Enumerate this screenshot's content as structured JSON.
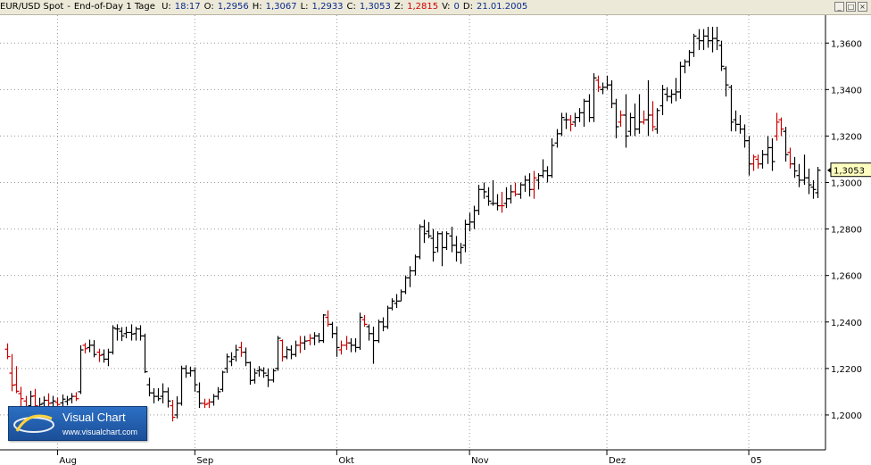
{
  "header": {
    "symbol": "EUR/USD Spot",
    "sep": "-",
    "period": "End-of-Day 1 Tage",
    "fields": [
      {
        "label": "U:",
        "value": "18:17",
        "color": "#0a2a8c"
      },
      {
        "label": "O:",
        "value": "1,2956",
        "color": "#0a2a8c"
      },
      {
        "label": "H:",
        "value": "1,3067",
        "color": "#0a2a8c"
      },
      {
        "label": "L:",
        "value": "1,2933",
        "color": "#0a2a8c"
      },
      {
        "label": "C:",
        "value": "1,3053",
        "color": "#0a2a8c"
      },
      {
        "label": "Z:",
        "value": "1,2815",
        "color": "#d00000"
      },
      {
        "label": "V:",
        "value": "0",
        "color": "#0a2a8c"
      },
      {
        "label": "D:",
        "value": "21.01.2005",
        "color": "#0a2a8c"
      }
    ]
  },
  "logo": {
    "name": "Visual Chart",
    "url": "www.visualchart.com"
  },
  "chart_data": {
    "type": "ohlc",
    "ylim": [
      1.185,
      1.372
    ],
    "y_ticks": [
      1.2,
      1.22,
      1.24,
      1.26,
      1.28,
      1.3,
      1.32,
      1.34,
      1.36
    ],
    "y_tick_labels": [
      "1,2000",
      "1,2200",
      "1,2400",
      "1,2600",
      "1,2800",
      "1,3000",
      "1,3200",
      "1,3400",
      "1,3600"
    ],
    "x_tick_labels": [
      {
        "label": "Aug",
        "index": 11
      },
      {
        "label": "Sep",
        "index": 41
      },
      {
        "label": "Okt",
        "index": 72
      },
      {
        "label": "Nov",
        "index": 101
      },
      {
        "label": "Dez",
        "index": 131
      },
      {
        "label": "05",
        "index": 162
      }
    ],
    "last_price": 1.3053,
    "last_price_label": "1,3053",
    "grid": true,
    "colors": {
      "up": "#000000",
      "down": "#cc0000",
      "grid": "#9a9a9a",
      "price_box": "#ffffc0"
    },
    "bars": [
      [
        1.2283,
        1.2308,
        1.224,
        1.2251,
        "d"
      ],
      [
        1.218,
        1.2262,
        1.2102,
        1.2128,
        "d"
      ],
      [
        1.213,
        1.221,
        1.2094,
        1.2102,
        "d"
      ],
      [
        1.2092,
        1.2121,
        1.2033,
        1.207,
        "d"
      ],
      [
        1.206,
        1.2082,
        1.2015,
        1.2032,
        "d"
      ],
      [
        1.204,
        1.2104,
        1.2013,
        1.208,
        "u"
      ],
      [
        1.2082,
        1.2112,
        1.2026,
        1.204,
        "d"
      ],
      [
        1.2034,
        1.2074,
        1.2008,
        1.2045,
        "u"
      ],
      [
        1.205,
        1.208,
        1.2016,
        1.2063,
        "u"
      ],
      [
        1.2063,
        1.2093,
        1.2032,
        1.205,
        "d"
      ],
      [
        1.2052,
        1.2082,
        1.2028,
        1.206,
        "u"
      ],
      [
        1.2054,
        1.2075,
        1.201,
        1.2045,
        "d"
      ],
      [
        1.2052,
        1.2088,
        1.2033,
        1.2068,
        "u"
      ],
      [
        1.2058,
        1.2082,
        1.2041,
        1.2065,
        "u"
      ],
      [
        1.207,
        1.2094,
        1.205,
        1.208,
        "u"
      ],
      [
        1.208,
        1.2098,
        1.206,
        1.207,
        "d"
      ],
      [
        1.21,
        1.23,
        1.209,
        1.228,
        "u"
      ],
      [
        1.23,
        1.231,
        1.2265,
        1.2285,
        "d"
      ],
      [
        1.229,
        1.2324,
        1.227,
        1.23,
        "u"
      ],
      [
        1.23,
        1.2322,
        1.2248,
        1.226,
        "u"
      ],
      [
        1.227,
        1.2285,
        1.2228,
        1.2256,
        "d"
      ],
      [
        1.226,
        1.2282,
        1.2225,
        1.224,
        "u"
      ],
      [
        1.224,
        1.2285,
        1.221,
        1.227,
        "u"
      ],
      [
        1.227,
        1.2386,
        1.226,
        1.2375,
        "u"
      ],
      [
        1.237,
        1.239,
        1.232,
        1.237,
        "u"
      ],
      [
        1.236,
        1.2378,
        1.2318,
        1.234,
        "u"
      ],
      [
        1.235,
        1.238,
        1.233,
        1.2355,
        "u"
      ],
      [
        1.2355,
        1.239,
        1.232,
        1.2348,
        "u"
      ],
      [
        1.235,
        1.238,
        1.232,
        1.237,
        "u"
      ],
      [
        1.237,
        1.2386,
        1.232,
        1.234,
        "u"
      ],
      [
        1.234,
        1.235,
        1.218,
        1.2186,
        "u"
      ],
      [
        1.213,
        1.216,
        1.208,
        1.2095,
        "u"
      ],
      [
        1.2095,
        1.2115,
        1.205,
        1.208,
        "u"
      ],
      [
        1.208,
        1.2115,
        1.206,
        1.207,
        "u"
      ],
      [
        1.208,
        1.2136,
        1.205,
        1.21,
        "u"
      ],
      [
        1.21,
        1.2118,
        1.2032,
        1.206,
        "u"
      ],
      [
        1.204,
        1.2065,
        1.1972,
        1.199,
        "d"
      ],
      [
        1.2,
        1.208,
        1.1985,
        1.205,
        "u"
      ],
      [
        1.205,
        1.2212,
        1.204,
        1.22,
        "u"
      ],
      [
        1.22,
        1.2214,
        1.216,
        1.218,
        "u"
      ],
      [
        1.218,
        1.2208,
        1.2165,
        1.219,
        "u"
      ],
      [
        1.219,
        1.2205,
        1.21,
        1.213,
        "u"
      ],
      [
        1.21,
        1.214,
        1.203,
        1.205,
        "u"
      ],
      [
        1.205,
        1.207,
        1.203,
        1.2045,
        "d"
      ],
      [
        1.205,
        1.207,
        1.203,
        1.2056,
        "d"
      ],
      [
        1.2056,
        1.209,
        1.204,
        1.208,
        "u"
      ],
      [
        1.208,
        1.212,
        1.2066,
        1.21,
        "u"
      ],
      [
        1.211,
        1.219,
        1.21,
        1.2184,
        "u"
      ],
      [
        1.22,
        1.2264,
        1.218,
        1.225,
        "u"
      ],
      [
        1.223,
        1.227,
        1.221,
        1.224,
        "u"
      ],
      [
        1.225,
        1.2302,
        1.223,
        1.228,
        "u"
      ],
      [
        1.229,
        1.2315,
        1.225,
        1.227,
        "d"
      ],
      [
        1.227,
        1.229,
        1.221,
        1.2225,
        "u"
      ],
      [
        1.2225,
        1.223,
        1.213,
        1.2148,
        "u"
      ],
      [
        1.215,
        1.22,
        1.2135,
        1.218,
        "u"
      ],
      [
        1.219,
        1.221,
        1.2165,
        1.2195,
        "u"
      ],
      [
        1.219,
        1.2205,
        1.216,
        1.218,
        "u"
      ],
      [
        1.217,
        1.22,
        1.212,
        1.215,
        "u"
      ],
      [
        1.215,
        1.22,
        1.214,
        1.219,
        "u"
      ],
      [
        1.22,
        1.234,
        1.219,
        1.233,
        "u"
      ],
      [
        1.232,
        1.2325,
        1.223,
        1.225,
        "d"
      ],
      [
        1.225,
        1.2295,
        1.224,
        1.2282,
        "u"
      ],
      [
        1.228,
        1.23,
        1.224,
        1.226,
        "u"
      ],
      [
        1.226,
        1.232,
        1.225,
        1.23,
        "u"
      ],
      [
        1.23,
        1.234,
        1.2266,
        1.231,
        "d"
      ],
      [
        1.231,
        1.234,
        1.228,
        1.2318,
        "u"
      ],
      [
        1.232,
        1.2348,
        1.23,
        1.233,
        "d"
      ],
      [
        1.233,
        1.2356,
        1.23,
        1.234,
        "u"
      ],
      [
        1.234,
        1.2353,
        1.231,
        1.232,
        "u"
      ],
      [
        1.232,
        1.2434,
        1.231,
        1.243,
        "u"
      ],
      [
        1.242,
        1.245,
        1.238,
        1.239,
        "d"
      ],
      [
        1.239,
        1.24,
        1.233,
        1.235,
        "u"
      ],
      [
        1.235,
        1.238,
        1.225,
        1.229,
        "u"
      ],
      [
        1.228,
        1.232,
        1.226,
        1.23,
        "d"
      ],
      [
        1.23,
        1.234,
        1.228,
        1.231,
        "d"
      ],
      [
        1.231,
        1.233,
        1.227,
        1.23,
        "u"
      ],
      [
        1.23,
        1.233,
        1.227,
        1.229,
        "u"
      ],
      [
        1.229,
        1.244,
        1.228,
        1.242,
        "u"
      ],
      [
        1.241,
        1.243,
        1.238,
        1.239,
        "d"
      ],
      [
        1.238,
        1.239,
        1.232,
        1.235,
        "u"
      ],
      [
        1.235,
        1.238,
        1.222,
        1.232,
        "u"
      ],
      [
        1.232,
        1.241,
        1.231,
        1.24,
        "u"
      ],
      [
        1.24,
        1.242,
        1.236,
        1.238,
        "u"
      ],
      [
        1.238,
        1.247,
        1.237,
        1.246,
        "u"
      ],
      [
        1.246,
        1.2502,
        1.245,
        1.249,
        "u"
      ],
      [
        1.248,
        1.252,
        1.246,
        1.249,
        "u"
      ],
      [
        1.249,
        1.254,
        1.249,
        1.253,
        "u"
      ],
      [
        1.253,
        1.26,
        1.252,
        1.259,
        "u"
      ],
      [
        1.259,
        1.264,
        1.255,
        1.262,
        "u"
      ],
      [
        1.262,
        1.269,
        1.26,
        1.268,
        "u"
      ],
      [
        1.268,
        1.282,
        1.267,
        1.281,
        "u"
      ],
      [
        1.281,
        1.284,
        1.274,
        1.278,
        "u"
      ],
      [
        1.279,
        1.283,
        1.276,
        1.277,
        "u"
      ],
      [
        1.276,
        1.28,
        1.266,
        1.27,
        "u"
      ],
      [
        1.272,
        1.279,
        1.27,
        1.278,
        "u"
      ],
      [
        1.278,
        1.279,
        1.264,
        1.272,
        "u"
      ],
      [
        1.272,
        1.279,
        1.271,
        1.278,
        "u"
      ],
      [
        1.277,
        1.281,
        1.27,
        1.273,
        "u"
      ],
      [
        1.273,
        1.277,
        1.266,
        1.27,
        "u"
      ],
      [
        1.27,
        1.274,
        1.265,
        1.272,
        "u"
      ],
      [
        1.273,
        1.284,
        1.27,
        1.282,
        "u"
      ],
      [
        1.282,
        1.287,
        1.279,
        1.283,
        "u"
      ],
      [
        1.283,
        1.29,
        1.28,
        1.288,
        "u"
      ],
      [
        1.288,
        1.299,
        1.286,
        1.297,
        "u"
      ],
      [
        1.297,
        1.3,
        1.293,
        1.296,
        "u"
      ],
      [
        1.294,
        1.298,
        1.29,
        1.292,
        "u"
      ],
      [
        1.291,
        1.301,
        1.29,
        1.291,
        "u"
      ],
      [
        1.291,
        1.295,
        1.288,
        1.29,
        "u"
      ],
      [
        1.29,
        1.296,
        1.287,
        1.29,
        "d"
      ],
      [
        1.291,
        1.298,
        1.289,
        1.293,
        "u"
      ],
      [
        1.293,
        1.299,
        1.291,
        1.296,
        "u"
      ],
      [
        1.296,
        1.3,
        1.294,
        1.295,
        "d"
      ],
      [
        1.295,
        1.3,
        1.293,
        1.299,
        "u"
      ],
      [
        1.299,
        1.303,
        1.296,
        1.301,
        "u"
      ],
      [
        1.301,
        1.304,
        1.294,
        1.297,
        "u"
      ],
      [
        1.297,
        1.305,
        1.293,
        1.302,
        "d"
      ],
      [
        1.301,
        1.304,
        1.297,
        1.303,
        "u"
      ],
      [
        1.303,
        1.31,
        1.302,
        1.305,
        "u"
      ],
      [
        1.305,
        1.307,
        1.3,
        1.303,
        "u"
      ],
      [
        1.303,
        1.319,
        1.302,
        1.316,
        "u"
      ],
      [
        1.317,
        1.323,
        1.315,
        1.321,
        "u"
      ],
      [
        1.321,
        1.33,
        1.32,
        1.328,
        "u"
      ],
      [
        1.327,
        1.33,
        1.323,
        1.327,
        "u"
      ],
      [
        1.327,
        1.329,
        1.322,
        1.325,
        "d"
      ],
      [
        1.326,
        1.33,
        1.324,
        1.328,
        "u"
      ],
      [
        1.328,
        1.332,
        1.326,
        1.33,
        "u"
      ],
      [
        1.33,
        1.336,
        1.324,
        1.335,
        "u"
      ],
      [
        1.335,
        1.338,
        1.326,
        1.328,
        "u"
      ],
      [
        1.328,
        1.347,
        1.326,
        1.345,
        "u"
      ],
      [
        1.344,
        1.346,
        1.339,
        1.341,
        "d"
      ],
      [
        1.34,
        1.343,
        1.338,
        1.341,
        "u"
      ],
      [
        1.341,
        1.346,
        1.34,
        1.342,
        "u"
      ],
      [
        1.342,
        1.344,
        1.332,
        1.334,
        "u"
      ],
      [
        1.334,
        1.336,
        1.319,
        1.324,
        "u"
      ],
      [
        1.326,
        1.331,
        1.324,
        1.329,
        "d"
      ],
      [
        1.329,
        1.338,
        1.315,
        1.32,
        "u"
      ],
      [
        1.322,
        1.33,
        1.32,
        1.328,
        "u"
      ],
      [
        1.328,
        1.334,
        1.32,
        1.323,
        "u"
      ],
      [
        1.323,
        1.338,
        1.321,
        1.326,
        "u"
      ],
      [
        1.326,
        1.331,
        1.325,
        1.327,
        "d"
      ],
      [
        1.327,
        1.344,
        1.32,
        1.329,
        "u"
      ],
      [
        1.329,
        1.335,
        1.322,
        1.324,
        "d"
      ],
      [
        1.323,
        1.332,
        1.321,
        1.331,
        "u"
      ],
      [
        1.333,
        1.342,
        1.329,
        1.34,
        "u"
      ],
      [
        1.338,
        1.341,
        1.335,
        1.337,
        "u"
      ],
      [
        1.337,
        1.34,
        1.334,
        1.338,
        "u"
      ],
      [
        1.338,
        1.345,
        1.335,
        1.339,
        "u"
      ],
      [
        1.339,
        1.352,
        1.336,
        1.35,
        "u"
      ],
      [
        1.35,
        1.353,
        1.347,
        1.352,
        "u"
      ],
      [
        1.352,
        1.357,
        1.35,
        1.356,
        "u"
      ],
      [
        1.356,
        1.364,
        1.354,
        1.363,
        "u"
      ],
      [
        1.362,
        1.366,
        1.357,
        1.361,
        "u"
      ],
      [
        1.361,
        1.366,
        1.357,
        1.363,
        "u"
      ],
      [
        1.363,
        1.367,
        1.358,
        1.361,
        "u"
      ],
      [
        1.361,
        1.367,
        1.356,
        1.362,
        "u"
      ],
      [
        1.362,
        1.367,
        1.357,
        1.361,
        "u"
      ],
      [
        1.359,
        1.361,
        1.348,
        1.35,
        "u"
      ],
      [
        1.349,
        1.35,
        1.337,
        1.342,
        "u"
      ],
      [
        1.341,
        1.342,
        1.322,
        1.326,
        "u"
      ],
      [
        1.327,
        1.331,
        1.322,
        1.325,
        "u"
      ],
      [
        1.325,
        1.329,
        1.321,
        1.323,
        "u"
      ],
      [
        1.323,
        1.325,
        1.315,
        1.318,
        "u"
      ],
      [
        1.318,
        1.32,
        1.303,
        1.308,
        "u"
      ],
      [
        1.308,
        1.312,
        1.305,
        1.311,
        "d"
      ],
      [
        1.31,
        1.312,
        1.306,
        1.308,
        "d"
      ],
      [
        1.308,
        1.314,
        1.306,
        1.312,
        "u"
      ],
      [
        1.312,
        1.32,
        1.308,
        1.315,
        "u"
      ],
      [
        1.315,
        1.319,
        1.305,
        1.309,
        "u"
      ],
      [
        1.32,
        1.33,
        1.318,
        1.326,
        "d"
      ],
      [
        1.327,
        1.328,
        1.32,
        1.323,
        "d"
      ],
      [
        1.322,
        1.324,
        1.309,
        1.312,
        "u"
      ],
      [
        1.313,
        1.315,
        1.306,
        1.308,
        "d"
      ],
      [
        1.308,
        1.311,
        1.302,
        1.305,
        "u"
      ],
      [
        1.303,
        1.308,
        1.298,
        1.301,
        "u"
      ],
      [
        1.301,
        1.312,
        1.299,
        1.302,
        "u"
      ],
      [
        1.302,
        1.306,
        1.295,
        1.299,
        "u"
      ],
      [
        1.298,
        1.301,
        1.293,
        1.297,
        "u"
      ],
      [
        1.2956,
        1.3067,
        1.2933,
        1.3053,
        "u"
      ]
    ]
  }
}
